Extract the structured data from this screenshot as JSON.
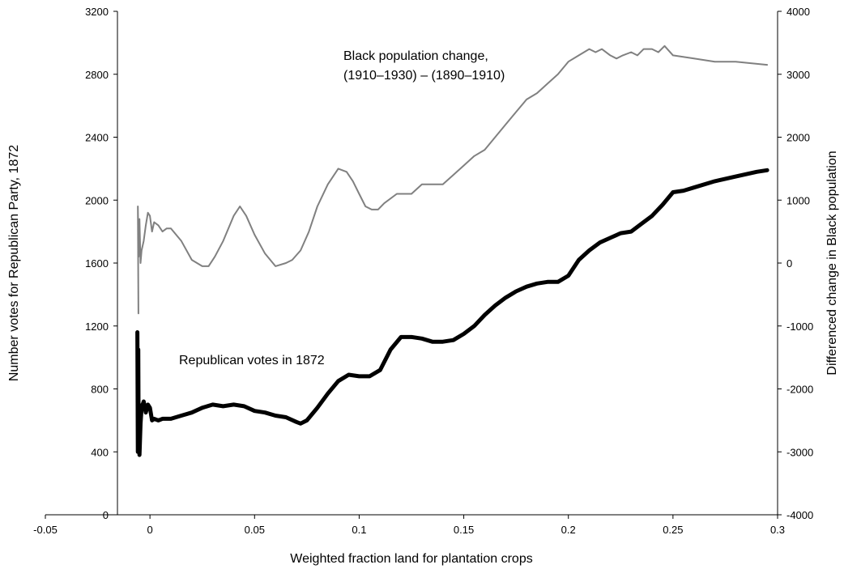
{
  "chart_data": {
    "type": "line",
    "xlabel": "Weighted fraction land for plantation crops",
    "ylabel_left": "Number votes for Republican Party, 1872",
    "ylabel_right": "Differenced change in Black population",
    "xlim": [
      -0.05,
      0.3
    ],
    "ylim_left": [
      0,
      3200
    ],
    "ylim_right": [
      -4000,
      4000
    ],
    "x_ticks": [
      -0.05,
      0,
      0.05,
      0.1,
      0.15,
      0.2,
      0.25,
      0.3
    ],
    "x_tick_labels": [
      "-0.05",
      "0",
      "0.05",
      "0.1",
      "0.15",
      "0.2",
      "0.25",
      "0.3"
    ],
    "y_left_ticks": [
      0,
      400,
      800,
      1200,
      1600,
      2000,
      2400,
      2800,
      3200
    ],
    "y_left_tick_labels": [
      "0",
      "400",
      "800",
      "1200",
      "1600",
      "2000",
      "2400",
      "2800",
      "3200"
    ],
    "y_right_ticks": [
      -4000,
      -3000,
      -2000,
      -1000,
      0,
      1000,
      2000,
      3000,
      4000
    ],
    "y_right_tick_labels": [
      "-4000",
      "-3000",
      "-2000",
      "-1000",
      "0",
      "1000",
      "2000",
      "3000",
      "4000"
    ],
    "grid": false,
    "legend": "none",
    "annotations": [
      {
        "lines": [
          "Black population change,",
          "(1910–1930) – (1890–1910)"
        ],
        "series": "black_population_change"
      },
      {
        "lines": [
          "Republican votes in 1872"
        ],
        "series": "republican_votes"
      }
    ],
    "series": [
      {
        "id": "black_population_change",
        "axis": "right",
        "color": "#808080",
        "x": [
          -0.0055,
          -0.0058,
          -0.0054,
          -0.0052,
          -0.005,
          -0.0045,
          -0.004,
          -0.003,
          -0.002,
          -0.001,
          0.0,
          0.001,
          0.002,
          0.004,
          0.006,
          0.008,
          0.01,
          0.015,
          0.02,
          0.025,
          0.028,
          0.031,
          0.035,
          0.04,
          0.043,
          0.046,
          0.05,
          0.055,
          0.06,
          0.065,
          0.068,
          0.072,
          0.076,
          0.08,
          0.085,
          0.09,
          0.094,
          0.097,
          0.1,
          0.103,
          0.106,
          0.109,
          0.112,
          0.118,
          0.125,
          0.13,
          0.135,
          0.14,
          0.145,
          0.15,
          0.155,
          0.16,
          0.165,
          0.17,
          0.175,
          0.18,
          0.185,
          0.19,
          0.195,
          0.2,
          0.205,
          0.21,
          0.213,
          0.216,
          0.22,
          0.223,
          0.226,
          0.23,
          0.233,
          0.236,
          0.24,
          0.243,
          0.246,
          0.25,
          0.26,
          0.27,
          0.28,
          0.295
        ],
        "y": [
          -800,
          900,
          100,
          300,
          700,
          0,
          200,
          350,
          600,
          800,
          750,
          500,
          650,
          600,
          500,
          550,
          550,
          350,
          50,
          -50,
          -50,
          100,
          350,
          750,
          900,
          750,
          450,
          150,
          -50,
          0,
          50,
          200,
          500,
          900,
          1250,
          1500,
          1450,
          1300,
          1100,
          900,
          850,
          850,
          950,
          1100,
          1100,
          1250,
          1250,
          1250,
          1400,
          1550,
          1700,
          1800,
          2000,
          2200,
          2400,
          2600,
          2700,
          2850,
          3000,
          3200,
          3300,
          3400,
          3350,
          3400,
          3300,
          3250,
          3300,
          3350,
          3300,
          3400,
          3400,
          3350,
          3450,
          3300,
          3250,
          3200,
          3200,
          3150
        ]
      },
      {
        "id": "republican_votes",
        "axis": "left",
        "color": "#000000",
        "x": [
          -0.006,
          -0.0058,
          -0.0056,
          -0.0054,
          -0.0052,
          -0.005,
          -0.0045,
          -0.004,
          -0.003,
          -0.002,
          -0.001,
          0.0,
          0.001,
          0.002,
          0.004,
          0.006,
          0.008,
          0.01,
          0.015,
          0.02,
          0.025,
          0.03,
          0.035,
          0.04,
          0.045,
          0.05,
          0.055,
          0.06,
          0.065,
          0.07,
          0.072,
          0.075,
          0.08,
          0.085,
          0.09,
          0.095,
          0.1,
          0.105,
          0.11,
          0.115,
          0.12,
          0.125,
          0.13,
          0.135,
          0.14,
          0.145,
          0.15,
          0.155,
          0.16,
          0.165,
          0.17,
          0.175,
          0.18,
          0.185,
          0.19,
          0.195,
          0.2,
          0.205,
          0.21,
          0.215,
          0.22,
          0.225,
          0.23,
          0.235,
          0.24,
          0.245,
          0.25,
          0.255,
          0.26,
          0.27,
          0.28,
          0.29,
          0.295
        ],
        "y": [
          1160,
          400,
          1050,
          420,
          700,
          380,
          580,
          680,
          720,
          650,
          700,
          680,
          600,
          610,
          600,
          610,
          610,
          610,
          630,
          650,
          680,
          700,
          690,
          700,
          690,
          660,
          650,
          630,
          620,
          590,
          580,
          600,
          680,
          770,
          850,
          890,
          880,
          880,
          920,
          1050,
          1130,
          1130,
          1120,
          1100,
          1100,
          1110,
          1150,
          1200,
          1270,
          1330,
          1380,
          1420,
          1450,
          1470,
          1480,
          1480,
          1520,
          1620,
          1680,
          1730,
          1760,
          1790,
          1800,
          1850,
          1900,
          1970,
          2050,
          2060,
          2080,
          2120,
          2150,
          2180,
          2190
        ]
      }
    ]
  }
}
